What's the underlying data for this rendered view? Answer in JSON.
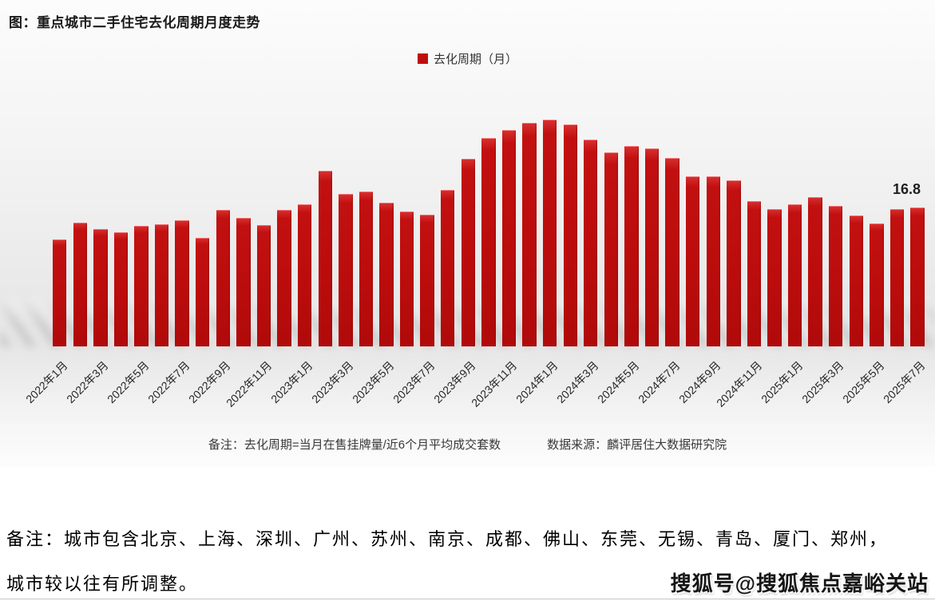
{
  "chart_title": "图：重点城市二手住宅去化周期月度走势",
  "legend": {
    "label": "去化周期（月）",
    "color": "#c00d0d"
  },
  "chart_data": {
    "type": "bar",
    "title": "重点城市二手住宅去化周期月度走势",
    "ylabel": "去化周期（月）",
    "xlabel": "",
    "ylim": [
      0,
      29
    ],
    "grid": false,
    "legend_position": "top-center",
    "bar_color": "#c00d0d",
    "categories": [
      "2022年1月",
      "2022年2月",
      "2022年3月",
      "2022年4月",
      "2022年5月",
      "2022年6月",
      "2022年7月",
      "2022年8月",
      "2022年9月",
      "2022年10月",
      "2022年11月",
      "2022年12月",
      "2023年1月",
      "2023年2月",
      "2023年3月",
      "2023年4月",
      "2023年5月",
      "2023年6月",
      "2023年7月",
      "2023年8月",
      "2023年9月",
      "2023年10月",
      "2023年11月",
      "2023年12月",
      "2024年1月",
      "2024年2月",
      "2024年3月",
      "2024年4月",
      "2024年5月",
      "2024年6月",
      "2024年7月",
      "2024年8月",
      "2024年9月",
      "2024年10月",
      "2024年11月",
      "2024年12月",
      "2025年1月",
      "2025年2月",
      "2025年3月",
      "2025年4月",
      "2025年5月",
      "2025年6月",
      "2025年7月"
    ],
    "values": [
      12.9,
      15.0,
      14.2,
      13.8,
      14.6,
      14.8,
      15.3,
      13.1,
      16.5,
      15.5,
      14.7,
      16.5,
      17.2,
      21.2,
      18.4,
      18.7,
      17.4,
      16.3,
      15.9,
      18.9,
      22.7,
      25.2,
      26.2,
      27.0,
      27.4,
      26.8,
      25.0,
      23.5,
      24.2,
      23.9,
      22.8,
      20.6,
      20.6,
      20.1,
      17.6,
      16.6,
      17.2,
      18.1,
      17.0,
      15.8,
      14.9,
      16.6,
      16.8
    ],
    "x_tick_labels": [
      "2022年1月",
      "2022年3月",
      "2022年5月",
      "2022年7月",
      "2022年9月",
      "2022年11月",
      "2023年1月",
      "2023年3月",
      "2023年5月",
      "2023年7月",
      "2023年9月",
      "2023年11月",
      "2024年1月",
      "2024年3月",
      "2024年5月",
      "2024年7月",
      "2024年9月",
      "2024年11月",
      "2025年1月",
      "2025年3月",
      "2025年5月",
      "2025年7月"
    ],
    "last_value_label": "16.8"
  },
  "notes": {
    "definition": "备注：去化周期=当月在售挂牌量/近6个月平均成交套数",
    "source": "数据来源：麟评居住大数据研究院"
  },
  "footnote": {
    "line1": "备注：城市包含北京、上海、深圳、广州、苏州、南京、成都、佛山、东莞、无锡、青岛、厦门、郑州，",
    "line2": "城市较以往有所调整。"
  },
  "watermark": "搜狐号@搜狐焦点嘉峪关站"
}
